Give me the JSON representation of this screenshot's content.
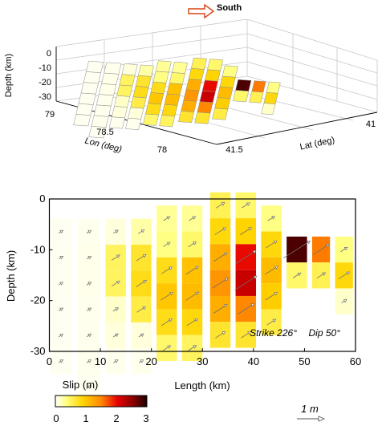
{
  "chart_data": [
    {
      "type": "surface3d",
      "title": "",
      "south_label": "South",
      "zlabel": "Depth (km)",
      "xlabel": "Lon (deg)",
      "ylabel": "Lat (deg)",
      "z_ticks": [
        "0",
        "-10",
        "-20",
        "-30"
      ],
      "lon_ticks": [
        "79",
        "78.5",
        "78"
      ],
      "lat_ticks": [
        "41.5",
        "41"
      ],
      "grid": true
    },
    {
      "type": "heatmap",
      "xlabel": "Length (km)",
      "ylabel": "Depth (km)",
      "xlim": [
        0,
        60
      ],
      "ylim": [
        -30,
        0
      ],
      "x_ticks": [
        "0",
        "10",
        "20",
        "30",
        "40",
        "50",
        "60"
      ],
      "y_ticks": [
        "0",
        "-10",
        "-20",
        "-30"
      ],
      "strike_label": "Strike 226°",
      "dip_label": "Dip 50°",
      "colorbar": {
        "label": "Slip (m)",
        "range": [
          0,
          3
        ],
        "ticks": [
          "0",
          "1",
          "2",
          "3"
        ]
      },
      "scale_arrow_label": "1 m",
      "columns": [
        {
          "x": [
            0,
            4.5
          ],
          "top": -3.9,
          "slip": [
            0.04,
            0.04,
            0.04,
            0.04,
            0.04,
            0.04
          ]
        },
        {
          "x": [
            5.5,
            10
          ],
          "top": -3.9,
          "slip": [
            0.05,
            0.06,
            0.06,
            0.05,
            0.05,
            0.05,
            0.04
          ]
        },
        {
          "x": [
            11,
            15
          ],
          "top": -3.9,
          "slip": [
            0.1,
            0.5,
            0.5,
            0.15,
            0.1,
            0.05
          ]
        },
        {
          "x": [
            16,
            20
          ],
          "top": -3.9,
          "slip": [
            0.25,
            0.7,
            0.8,
            0.6,
            0.1,
            0.05
          ]
        },
        {
          "x": [
            21,
            25
          ],
          "top": -1.3,
          "slip": [
            0.3,
            0.35,
            0.8,
            1.0,
            0.8,
            0.45
          ]
        },
        {
          "x": [
            26,
            30
          ],
          "top": -1.3,
          "slip": [
            0.3,
            0.45,
            1.05,
            1.1,
            0.85,
            0.5
          ]
        },
        {
          "x": [
            31.5,
            35.5
          ],
          "top": 1.3,
          "slip": [
            0.55,
            0.85,
            1.2,
            1.4,
            1.2,
            0.7
          ]
        },
        {
          "x": [
            36.5,
            40.5
          ],
          "top": 1.3,
          "slip": [
            0.45,
            0.9,
            2.0,
            2.2,
            1.5,
            0.7
          ]
        },
        {
          "x": [
            41.5,
            45.5
          ],
          "top": -1.3,
          "slip": [
            0.35,
            0.85,
            1.1,
            0.95,
            0.6
          ]
        },
        {
          "x": [
            46.5,
            50.5
          ],
          "top": -7.4,
          "slip": [
            2.8,
            0.45
          ]
        },
        {
          "x": [
            51.5,
            55
          ],
          "top": -7.4,
          "slip": [
            1.55,
            0.55
          ]
        },
        {
          "x": [
            56,
            59.5
          ],
          "top": -7.4,
          "slip": [
            0.35,
            0.85,
            0.15
          ]
        }
      ]
    }
  ]
}
